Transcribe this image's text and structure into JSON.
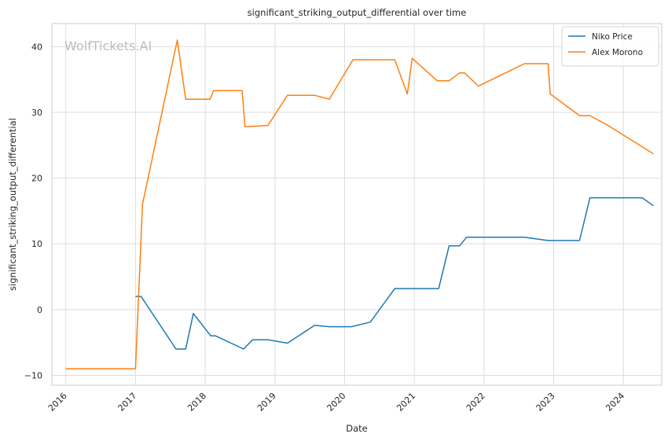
{
  "chart_data": {
    "type": "line",
    "title": "significant_striking_output_differential over time",
    "xlabel": "Date",
    "ylabel": "significant_striking_output_differential",
    "watermark": "WolfTickets.AI",
    "xlim": [
      2015.8,
      2024.55
    ],
    "ylim": [
      -11.5,
      43.5
    ],
    "x_ticks": [
      2016,
      2017,
      2018,
      2019,
      2020,
      2021,
      2022,
      2023,
      2024
    ],
    "x_tick_labels": [
      "2016",
      "2017",
      "2018",
      "2019",
      "2020",
      "2021",
      "2022",
      "2023",
      "2024"
    ],
    "y_ticks": [
      -10,
      0,
      10,
      20,
      30,
      40
    ],
    "y_tick_labels": [
      "−10",
      "0",
      "10",
      "20",
      "30",
      "40"
    ],
    "grid": true,
    "legend_position": "top-right",
    "series": [
      {
        "name": "Niko Price",
        "color": "#1f77b4",
        "points": [
          [
            2017.0,
            2.0
          ],
          [
            2017.08,
            2.0
          ],
          [
            2017.58,
            -6.0
          ],
          [
            2017.72,
            -6.0
          ],
          [
            2017.83,
            -0.6
          ],
          [
            2018.08,
            -4.0
          ],
          [
            2018.15,
            -4.0
          ],
          [
            2018.55,
            -6.0
          ],
          [
            2018.68,
            -4.6
          ],
          [
            2018.9,
            -4.6
          ],
          [
            2019.18,
            -5.1
          ],
          [
            2019.57,
            -2.4
          ],
          [
            2019.78,
            -2.6
          ],
          [
            2020.1,
            -2.6
          ],
          [
            2020.37,
            -1.9
          ],
          [
            2020.72,
            3.2
          ],
          [
            2021.35,
            3.2
          ],
          [
            2021.5,
            9.7
          ],
          [
            2021.65,
            9.7
          ],
          [
            2021.75,
            11.0
          ],
          [
            2022.58,
            11.0
          ],
          [
            2022.92,
            10.5
          ],
          [
            2023.37,
            10.5
          ],
          [
            2023.52,
            17.0
          ],
          [
            2024.27,
            17.0
          ],
          [
            2024.43,
            15.8
          ]
        ]
      },
      {
        "name": "Alex Morono",
        "color": "#ff7f0e",
        "points": [
          [
            2016.0,
            -9.0
          ],
          [
            2017.0,
            -9.0
          ],
          [
            2017.1,
            16.0
          ],
          [
            2017.6,
            41.0
          ],
          [
            2017.72,
            32.0
          ],
          [
            2018.07,
            32.0
          ],
          [
            2018.12,
            33.3
          ],
          [
            2018.53,
            33.3
          ],
          [
            2018.57,
            27.8
          ],
          [
            2018.9,
            28.0
          ],
          [
            2019.18,
            32.6
          ],
          [
            2019.57,
            32.6
          ],
          [
            2019.78,
            32.0
          ],
          [
            2020.12,
            38.0
          ],
          [
            2020.72,
            38.0
          ],
          [
            2020.9,
            32.8
          ],
          [
            2020.97,
            38.2
          ],
          [
            2021.33,
            34.8
          ],
          [
            2021.5,
            34.8
          ],
          [
            2021.65,
            36.0
          ],
          [
            2021.72,
            36.0
          ],
          [
            2021.92,
            34.0
          ],
          [
            2022.58,
            37.4
          ],
          [
            2022.92,
            37.4
          ],
          [
            2022.95,
            32.8
          ],
          [
            2023.37,
            29.5
          ],
          [
            2023.52,
            29.5
          ],
          [
            2023.78,
            28.0
          ],
          [
            2024.43,
            23.7
          ]
        ]
      }
    ]
  }
}
